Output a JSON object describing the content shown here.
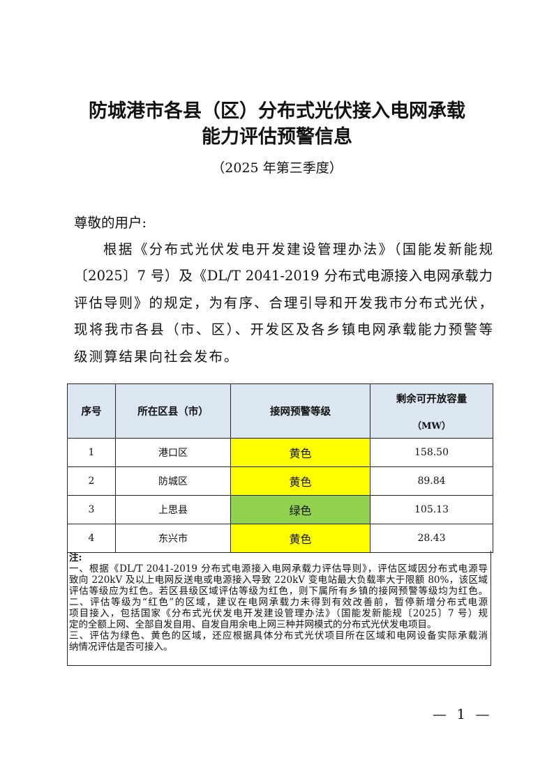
{
  "title": {
    "line1": "防城港市各县（区）分布式光伏接入电网承载",
    "line2": "能力评估预警信息",
    "subtitle": "（2025 年第三季度）"
  },
  "body": {
    "salutation": "尊敬的用户:",
    "lines": [
      "根据《分布式光伏发电开发建设管理办法》（国能发新能规",
      "〔2025〕7 号）及《DL/T 2041-2019 分布式电源接入电网承载力",
      "评估导则》的规定，为有序、合理引导和开发我市分布式光伏，",
      "现将我市各县（市、区）、开发区及各乡镇电网承载能力预警等",
      "级测算结果向社会发布。"
    ]
  },
  "table": {
    "headers": [
      "序号",
      "所在区县（市）",
      "接网预警等级",
      "剩余可开放容量",
      "（MW）"
    ],
    "rows": [
      {
        "no": "1",
        "district": "港口区",
        "level": "黄色",
        "capacity": "158.50"
      },
      {
        "no": "2",
        "district": "防城区",
        "level": "黄色",
        "capacity": "89.84"
      },
      {
        "no": "3",
        "district": "上思县",
        "level": "绿色",
        "capacity": "105.13"
      },
      {
        "no": "4",
        "district": "东兴市",
        "level": "黄色",
        "capacity": "28.43"
      }
    ],
    "colors": {
      "header": "#dce6f1",
      "yellow": "#ffff00",
      "green": "#92d050"
    }
  },
  "notes": {
    "label": "注:",
    "lines": [
      "一、根据《DL/T 2041-2019 分布式电源接入电网承载力评估导则》，评估区域因分布式电源导",
      "致向 220kV 及以上电网反送电或电源接入导致 220kV 变电站最大负载率大于限额 80%，该区域",
      "评估等级应为红色。若区县级区域评估等级为红色，则下属所有乡镇的接网预警等级均为红色。",
      "二、评估等级为“红色”的区域，建议在电网承载力未得到有效改善前，暂停新增分布式电源",
      "项目接入，包括国家《分布式光伏发电开发建设管理办法》（国能发新能规〔2025〕7 号）规",
      "定的全额上网、全部自发自用、自发自用余电上网三种并网模式的分布式光伏发电项目。",
      "三、评估为绿色、黄色的区域，还应根据具体分布式光伏项目所在区域和电网设备实际承载消",
      "纳情况评估是否可接入。"
    ]
  },
  "page_number": "— 1 —"
}
